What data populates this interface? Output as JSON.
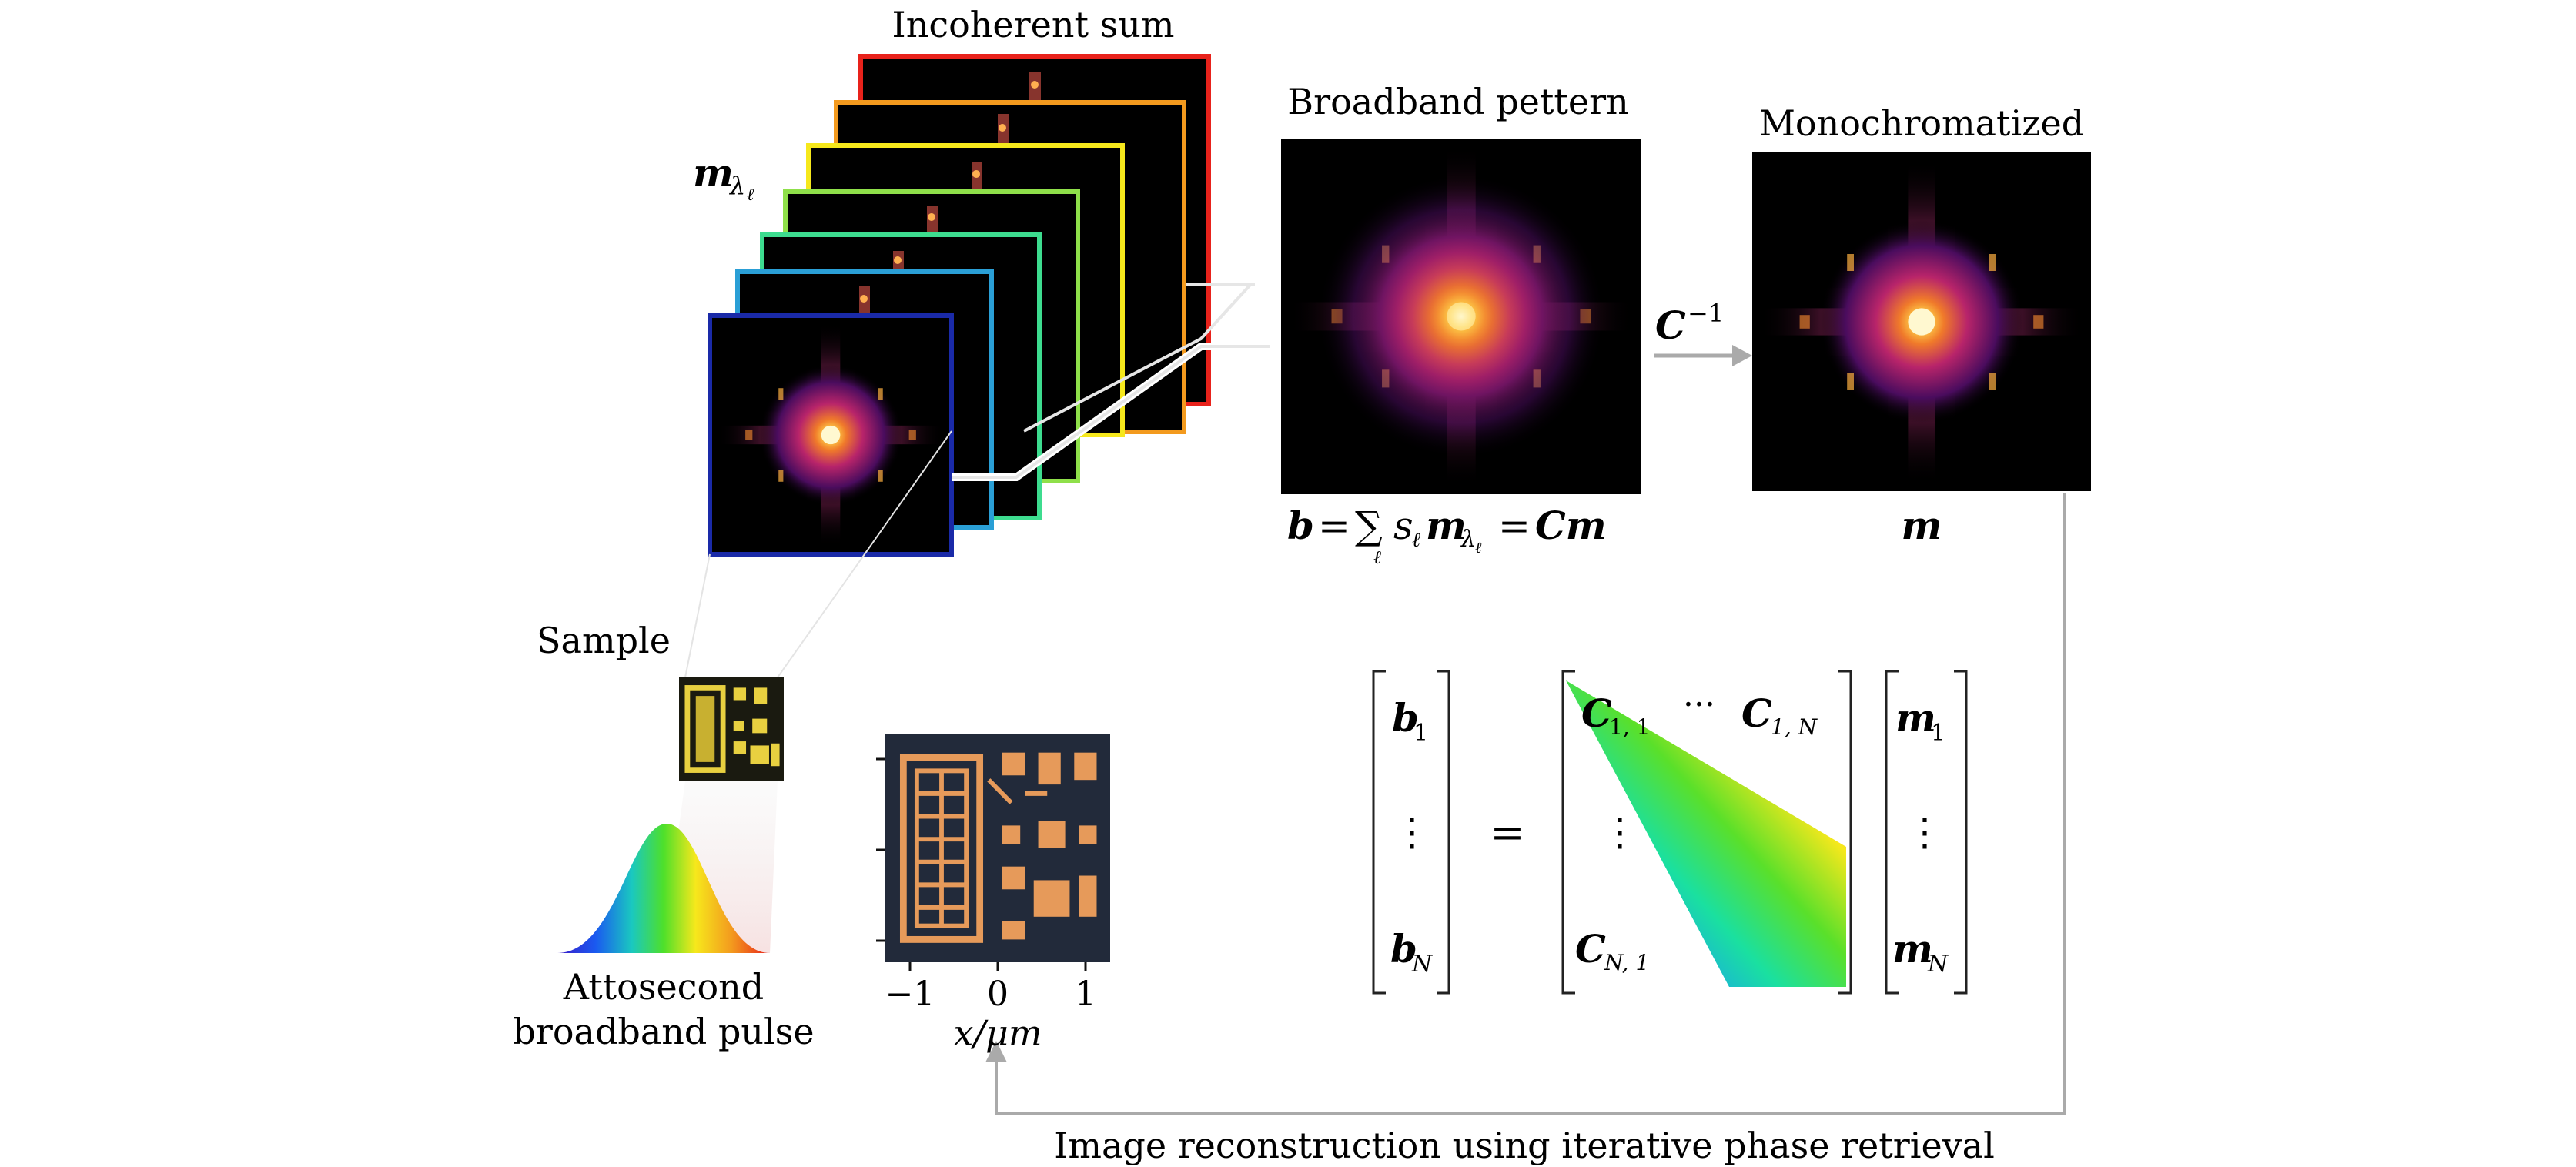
{
  "labels": {
    "incoherent_sum": "Incoherent sum",
    "m_lambda_main": "m",
    "m_lambda_sub": "λ",
    "m_lambda_subsub": "ℓ",
    "broadband_pattern": "Broadband pettern",
    "monochromatized": "Monochromatized",
    "c_inverse_main": "C",
    "c_inverse_sup": "−1",
    "sample": "Sample",
    "attosecond_line1": "Attosecond",
    "attosecond_line2": "broadband pulse",
    "x_axis_label": "x/μm",
    "x_ticks": [
      "−1",
      "0",
      "1"
    ],
    "reconstruction": "Image reconstruction using iterative phase retrieval"
  },
  "equations": {
    "b_eq_b": "b",
    "b_eq_equals": "=",
    "b_eq_sum": "∑",
    "b_eq_sum_index": "ℓ",
    "b_eq_s": "s",
    "b_eq_s_sub": "ℓ",
    "b_eq_m": "m",
    "b_eq_m_sub": "λ",
    "b_eq_m_subsub": "ℓ",
    "b_eq_equals2": "=",
    "b_eq_cm": "Cm",
    "m_label": "m"
  },
  "matrix": {
    "b1": "b",
    "b1_sub": "1",
    "b_vdots": "⋮",
    "bN": "b",
    "bN_sub": "N",
    "equals": "=",
    "c11": "C",
    "c11_sub": "1, 1",
    "cdots": "···",
    "c1N": "C",
    "c1N_sub": "1, N",
    "c_vdots": "⋮",
    "cN1": "C",
    "cN1_sub": "N, 1",
    "m1": "m",
    "m1_sub": "1",
    "m_vdots": "⋮",
    "mN": "m",
    "mN_sub": "N"
  },
  "colors": {
    "frame_colors": [
      "#e8221b",
      "#f39a1e",
      "#f6e81c",
      "#8fe04a",
      "#3ddc8f",
      "#2a9fd6",
      "#1a2aa8"
    ],
    "arrow_gray": "#aaaaaa",
    "pattern_bg": "#000000"
  }
}
